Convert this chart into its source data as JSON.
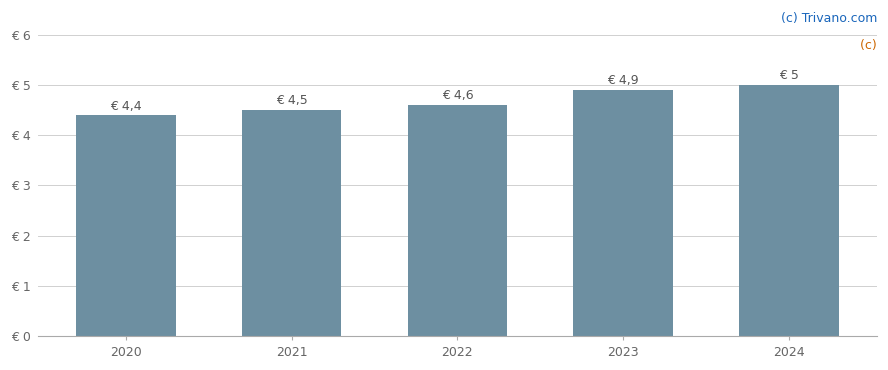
{
  "categories": [
    "2020",
    "2021",
    "2022",
    "2023",
    "2024"
  ],
  "values": [
    4.4,
    4.5,
    4.6,
    4.9,
    5.0
  ],
  "labels": [
    "€ 4,4",
    "€ 4,5",
    "€ 4,6",
    "€ 4,9",
    "€ 5"
  ],
  "bar_color": "#6d8fa1",
  "background_color": "#ffffff",
  "ylim": [
    0,
    6
  ],
  "yticks": [
    0,
    1,
    2,
    3,
    4,
    5,
    6
  ],
  "ytick_labels": [
    "€ 0",
    "€ 1",
    "€ 2",
    "€ 3",
    "€ 4",
    "€ 5",
    "€ 6"
  ],
  "grid_color": "#d0d0d0",
  "label_color": "#666666",
  "bar_label_color": "#555555",
  "watermark_color_c": "#cc6600",
  "watermark_color_text": "#1a66bb",
  "bar_width": 0.6,
  "label_fontsize": 9,
  "tick_fontsize": 9,
  "watermark_fontsize": 9,
  "figsize": [
    8.88,
    3.7
  ],
  "dpi": 100
}
